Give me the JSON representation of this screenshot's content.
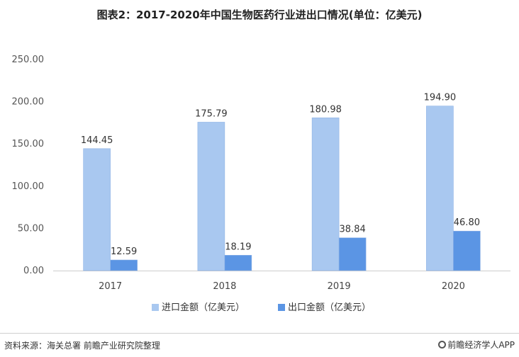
{
  "page": {
    "title": "图表2：2017-2020年中国生物医药行业进出口情况(单位：亿美元)",
    "source": "资料来源：海关总署 前瞻产业研究院整理",
    "brand": "前瞻经济学人APP"
  },
  "chart_data": {
    "type": "bar",
    "title": "图表2：2017-2020年中国生物医药行业进出口情况(单位：亿美元)",
    "categories": [
      "2017",
      "2018",
      "2019",
      "2020"
    ],
    "series": [
      {
        "name": "进口金额（亿美元）",
        "values": [
          144.45,
          175.79,
          180.98,
          194.9
        ],
        "color": "#a9c8f0"
      },
      {
        "name": "出口金额（亿美元）",
        "values": [
          12.59,
          18.19,
          38.84,
          46.8
        ],
        "color": "#5b95e4"
      }
    ],
    "y_ticks": [
      "0.00",
      "50.00",
      "100.00",
      "150.00",
      "200.00",
      "250.00"
    ],
    "ylim": [
      0,
      250
    ],
    "grid": false,
    "legend": "bottom",
    "label_decimals": 2
  }
}
